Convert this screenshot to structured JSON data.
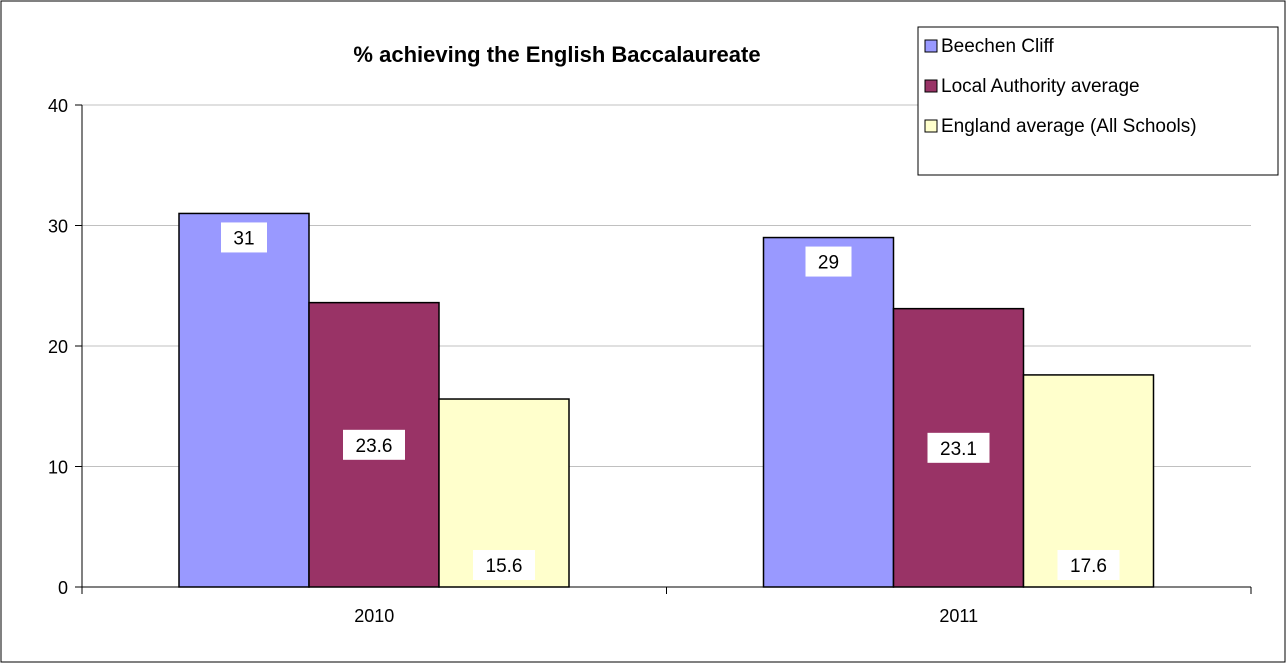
{
  "chart_data": {
    "type": "bar",
    "title": "% achieving the English Baccalaureate",
    "xlabel": "",
    "ylabel": "",
    "categories": [
      "2010",
      "2011"
    ],
    "series": [
      {
        "name": "Beechen Cliff",
        "values": [
          31,
          29
        ],
        "color": "#9999FF"
      },
      {
        "name": "Local Authority average",
        "values": [
          23.6,
          23.1
        ],
        "color": "#993366"
      },
      {
        "name": "England average (All Schools)",
        "values": [
          15.6,
          17.6
        ],
        "color": "#FFFFCC"
      }
    ],
    "data_labels": [
      [
        "31",
        "29"
      ],
      [
        "23.6",
        "23.1"
      ],
      [
        "15.6",
        "17.6"
      ]
    ],
    "ylim": [
      0,
      40
    ],
    "yticks": [
      0,
      10,
      20,
      30,
      40
    ],
    "grid": true,
    "legend_position": "top-right"
  }
}
